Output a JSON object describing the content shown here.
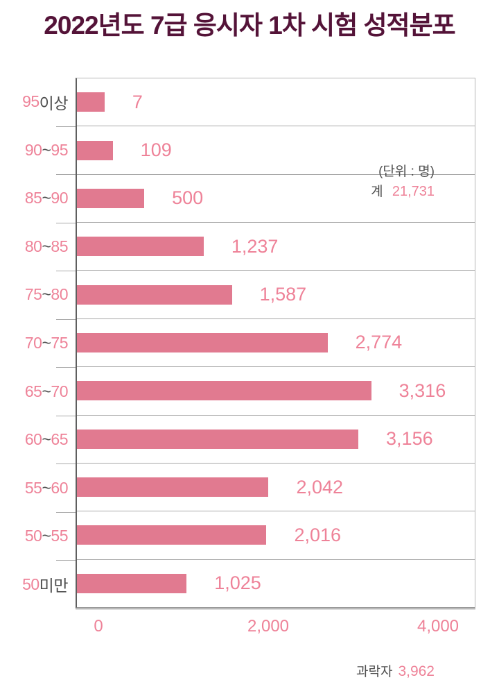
{
  "title": "2022년도 7급 응시자 1차 시험 성적분포",
  "annotations": {
    "unit": "(단위 : 명)",
    "total_label": "계",
    "total_value": "21,731",
    "fail_label": "과락자",
    "fail_value": "3,962"
  },
  "colors": {
    "title": "#541338",
    "bar": "#e17a90",
    "pink_text": "#ee8298",
    "gray_text": "#4f4f4f",
    "grid": "#a8a8a8",
    "axis": "#5f5f5f",
    "frame": "#b5b5b5"
  },
  "chart_data": {
    "type": "bar",
    "orientation": "horizontal",
    "title": "2022년도 7급 응시자 1차 시험 성적분포",
    "unit": "명",
    "total": 21731,
    "fail_count": 3962,
    "xlim": [
      0,
      4000
    ],
    "grid": true,
    "x_ticks": [
      {
        "value": 0,
        "label": "0"
      },
      {
        "value": 2000,
        "label": "2,000"
      },
      {
        "value": 4000,
        "label": "4,000"
      }
    ],
    "categories": [
      {
        "segments": [
          {
            "t": "95",
            "c": "pink"
          },
          {
            "t": " 이상",
            "c": "gray"
          }
        ]
      },
      {
        "segments": [
          {
            "t": "90",
            "c": "pink"
          },
          {
            "t": " ~ ",
            "c": "gray"
          },
          {
            "t": "95",
            "c": "pink"
          }
        ]
      },
      {
        "segments": [
          {
            "t": "85",
            "c": "pink"
          },
          {
            "t": " ~ ",
            "c": "gray"
          },
          {
            "t": "90",
            "c": "pink"
          }
        ]
      },
      {
        "segments": [
          {
            "t": "80",
            "c": "pink"
          },
          {
            "t": " ~ ",
            "c": "gray"
          },
          {
            "t": "85",
            "c": "pink"
          }
        ]
      },
      {
        "segments": [
          {
            "t": "75",
            "c": "pink"
          },
          {
            "t": " ~ ",
            "c": "gray"
          },
          {
            "t": "80",
            "c": "pink"
          }
        ]
      },
      {
        "segments": [
          {
            "t": "70",
            "c": "pink"
          },
          {
            "t": " ~ ",
            "c": "gray"
          },
          {
            "t": "75",
            "c": "pink"
          }
        ]
      },
      {
        "segments": [
          {
            "t": "65",
            "c": "pink"
          },
          {
            "t": " ~ ",
            "c": "gray"
          },
          {
            "t": "70",
            "c": "pink"
          }
        ]
      },
      {
        "segments": [
          {
            "t": "60",
            "c": "pink"
          },
          {
            "t": " ~ ",
            "c": "gray"
          },
          {
            "t": "65",
            "c": "pink"
          }
        ]
      },
      {
        "segments": [
          {
            "t": "55",
            "c": "pink"
          },
          {
            "t": " ~ ",
            "c": "gray"
          },
          {
            "t": "60",
            "c": "pink"
          }
        ]
      },
      {
        "segments": [
          {
            "t": "50",
            "c": "pink"
          },
          {
            "t": " ~ ",
            "c": "gray"
          },
          {
            "t": "55",
            "c": "pink"
          }
        ]
      },
      {
        "segments": [
          {
            "t": "50",
            "c": "pink"
          },
          {
            "t": " 미만",
            "c": "gray"
          }
        ]
      }
    ],
    "category_labels": [
      "95 이상",
      "90 ~ 95",
      "85 ~ 90",
      "80 ~ 85",
      "75 ~ 80",
      "70 ~ 75",
      "65 ~ 70",
      "60 ~ 65",
      "55 ~ 60",
      "50 ~ 55",
      "50 미만"
    ],
    "values": [
      7,
      109,
      500,
      1237,
      1587,
      2774,
      3316,
      3156,
      2042,
      2016,
      1025
    ],
    "value_labels": [
      "7",
      "109",
      "500",
      "1,237",
      "1,587",
      "2,774",
      "3,316",
      "3,156",
      "2,042",
      "2,016",
      "1,025"
    ]
  }
}
